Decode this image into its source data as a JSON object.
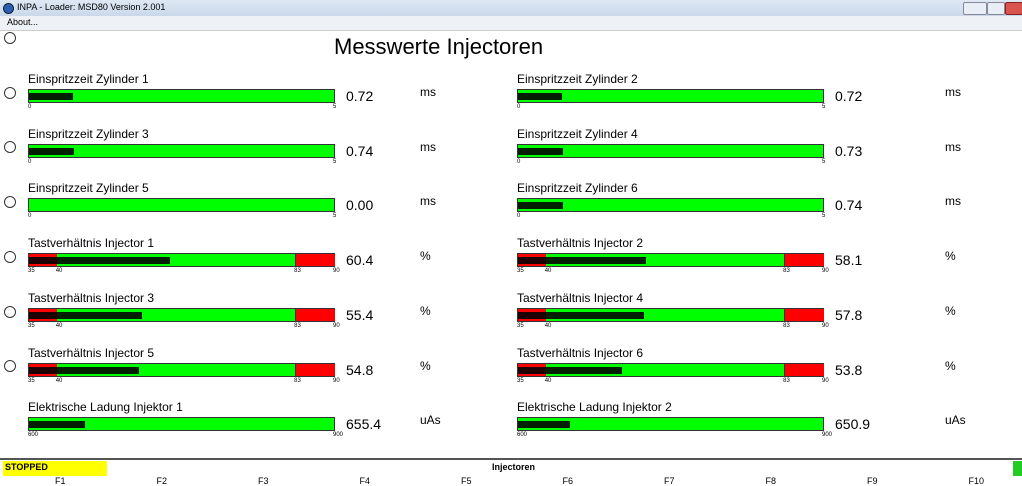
{
  "window": {
    "title": "INPA - Loader:  MSD80 Version 2.001",
    "menu": [
      "About..."
    ]
  },
  "heading": "Messwerte Injectoren",
  "gauges": [
    {
      "label": "Einspritzzeit Zylinder 1",
      "value": "0.72",
      "unit": "ms",
      "scale": [
        "0",
        "5"
      ]
    },
    {
      "label": "Einspritzzeit Zylinder 2",
      "value": "0.72",
      "unit": "ms",
      "scale": [
        "0",
        "5"
      ]
    },
    {
      "label": "Einspritzzeit Zylinder 3",
      "value": "0.74",
      "unit": "ms",
      "scale": [
        "0",
        "5"
      ]
    },
    {
      "label": "Einspritzzeit Zylinder 4",
      "value": "0.73",
      "unit": "ms",
      "scale": [
        "0",
        "5"
      ]
    },
    {
      "label": "Einspritzzeit Zylinder 5",
      "value": "0.00",
      "unit": "ms",
      "scale": [
        "0",
        "5"
      ]
    },
    {
      "label": "Einspritzzeit Zylinder 6",
      "value": "0.74",
      "unit": "ms",
      "scale": [
        "0",
        "5"
      ]
    },
    {
      "label": "Tastverhältnis Injector 1",
      "value": "60.4",
      "unit": "%",
      "scale": [
        "35",
        "40",
        "83",
        "90"
      ]
    },
    {
      "label": "Tastverhältnis Injector 2",
      "value": "58.1",
      "unit": "%",
      "scale": [
        "35",
        "40",
        "83",
        "90"
      ]
    },
    {
      "label": "Tastverhältnis Injector 3",
      "value": "55.4",
      "unit": "%",
      "scale": [
        "35",
        "40",
        "83",
        "90"
      ]
    },
    {
      "label": "Tastverhältnis Injector 4",
      "value": "57.8",
      "unit": "%",
      "scale": [
        "35",
        "40",
        "83",
        "90"
      ]
    },
    {
      "label": "Tastverhältnis Injector 5",
      "value": "54.8",
      "unit": "%",
      "scale": [
        "35",
        "40",
        "83",
        "90"
      ]
    },
    {
      "label": "Tastverhältnis Injector 6",
      "value": "53.8",
      "unit": "%",
      "scale": [
        "35",
        "40",
        "83",
        "90"
      ]
    },
    {
      "label": "Elektrische Ladung Injektor 1",
      "value": "655.4",
      "unit": "uAs",
      "scale": [
        "600",
        "900"
      ]
    },
    {
      "label": "Elektrische Ladung Injektor 2",
      "value": "650.9",
      "unit": "uAs",
      "scale": [
        "600",
        "900"
      ]
    }
  ],
  "status": {
    "state": "STOPPED",
    "screen": "Injectoren",
    "keys": [
      "F1",
      "F2",
      "F3",
      "F4",
      "F5",
      "F6",
      "F7",
      "F8",
      "F9",
      "F10"
    ]
  }
}
